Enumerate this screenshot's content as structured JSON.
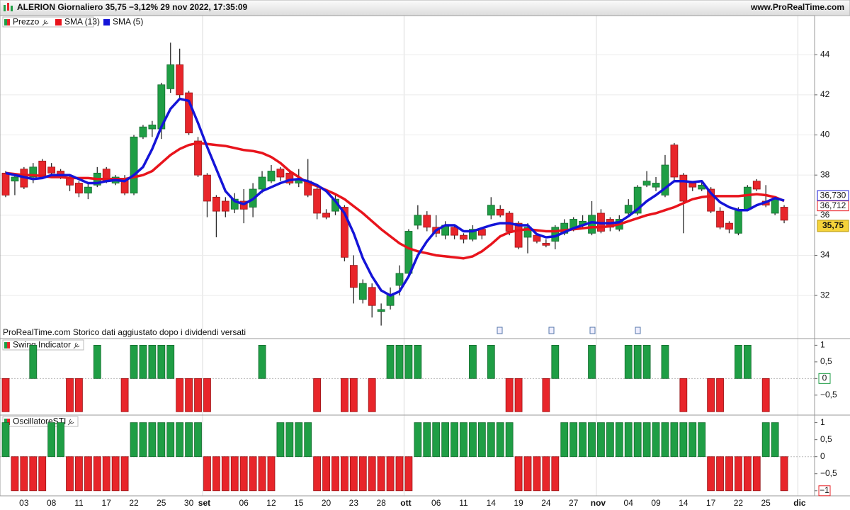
{
  "header": {
    "title": "ALERION Giornaliero 35,75 −3,12% 29 nov 2022, 17:35:09",
    "site": "www.ProRealTime.com"
  },
  "note": "ProRealTime.com Storico dati aggiustato dopo i dividendi versati",
  "chart_data": [
    {
      "type": "candlestick",
      "name": "Prezzo",
      "up_color": "#1f9e45",
      "down_color": "#e8252a",
      "close_label": "35,75",
      "categories": [
        null,
        null,
        "03",
        null,
        null,
        "08",
        null,
        null,
        "11",
        null,
        null,
        "17",
        null,
        null,
        "22",
        null,
        null,
        "25",
        null,
        null,
        "30",
        null,
        "set",
        null,
        null,
        null,
        "06",
        null,
        null,
        "12",
        null,
        null,
        "15",
        null,
        null,
        "20",
        null,
        null,
        "23",
        null,
        null,
        "28",
        null,
        null,
        "ott",
        null,
        null,
        "06",
        null,
        null,
        "11",
        null,
        null,
        "14",
        null,
        null,
        "19",
        null,
        null,
        "24",
        null,
        null,
        "27",
        null,
        null,
        "nov",
        null,
        null,
        "04",
        null,
        null,
        "09",
        null,
        null,
        "14",
        null,
        null,
        "17",
        null,
        null,
        "22",
        null,
        null,
        "25",
        null,
        null,
        null,
        "dic"
      ],
      "open": [
        38.1,
        37.7,
        38.3,
        37.9,
        38.7,
        38.4,
        38.2,
        37.9,
        37.6,
        37.1,
        37.5,
        38.3,
        37.6,
        37.8,
        37.1,
        39.9,
        40.3,
        40.3,
        42.3,
        43.5,
        42.1,
        39.7,
        38.0,
        36.9,
        36.7,
        36.3,
        36.7,
        36.4,
        37.3,
        37.7,
        38.3,
        38.1,
        37.6,
        37.7,
        37.3,
        36.1,
        36.2,
        36.4,
        33.5,
        31.8,
        32.4,
        31.2,
        31.5,
        32.5,
        33.1,
        35.5,
        36.0,
        35.4,
        35.0,
        35.4,
        35.0,
        34.8,
        35.3,
        36.0,
        36.3,
        36.1,
        35.6,
        34.9,
        35.0,
        34.6,
        34.7,
        35.1,
        35.3,
        35.5,
        35.1,
        36.1,
        35.8,
        35.3,
        36.1,
        36.1,
        37.5,
        37.4,
        37.0,
        39.5,
        38.0,
        37.6,
        37.3,
        37.3,
        36.2,
        35.6,
        35.1,
        36.3,
        37.7,
        36.7,
        36.1,
        36.4,
        null,
        null
      ],
      "high": [
        38.2,
        38.0,
        38.4,
        38.6,
        38.8,
        38.6,
        38.3,
        38.0,
        37.7,
        37.6,
        38.4,
        38.4,
        38.0,
        38.0,
        40.0,
        40.5,
        40.7,
        42.6,
        44.6,
        44.3,
        42.2,
        39.9,
        38.1,
        37.0,
        36.9,
        37.1,
        37.3,
        37.6,
        38.2,
        38.5,
        38.4,
        38.2,
        38.3,
        38.8,
        37.4,
        36.3,
        37.0,
        36.5,
        34.0,
        32.8,
        32.6,
        31.6,
        32.4,
        33.5,
        35.3,
        36.5,
        36.2,
        36.0,
        35.7,
        35.5,
        35.1,
        35.5,
        35.4,
        36.9,
        36.5,
        36.2,
        35.7,
        35.6,
        35.1,
        34.8,
        35.5,
        35.8,
        35.9,
        36.0,
        36.7,
        36.3,
        35.9,
        36.0,
        36.8,
        37.5,
        38.2,
        37.9,
        39.0,
        39.6,
        38.1,
        37.7,
        37.7,
        37.4,
        36.4,
        35.7,
        36.4,
        37.5,
        37.8,
        37.5,
        36.9,
        36.5,
        null,
        null
      ],
      "low": [
        36.9,
        37.0,
        37.3,
        37.6,
        37.9,
        37.9,
        37.8,
        37.2,
        36.9,
        36.8,
        37.4,
        37.6,
        37.5,
        37.0,
        37.0,
        39.8,
        39.9,
        39.8,
        42.1,
        41.8,
        40.0,
        37.9,
        35.9,
        34.9,
        35.9,
        36.1,
        35.6,
        35.9,
        37.1,
        37.6,
        37.7,
        37.5,
        37.4,
        36.9,
        35.8,
        35.8,
        36.0,
        33.7,
        31.6,
        31.6,
        30.9,
        30.5,
        31.3,
        32.0,
        33.0,
        35.3,
        35.2,
        34.9,
        34.8,
        34.8,
        34.6,
        34.7,
        34.8,
        35.8,
        35.9,
        35.0,
        34.3,
        34.1,
        34.6,
        34.4,
        34.3,
        35.0,
        35.2,
        35.4,
        35.0,
        35.1,
        35.2,
        35.2,
        36.0,
        36.0,
        37.4,
        37.2,
        36.9,
        37.7,
        35.1,
        37.2,
        37.2,
        36.1,
        35.3,
        35.1,
        35.0,
        36.2,
        37.2,
        36.4,
        36.0,
        35.6,
        null,
        null
      ],
      "close": [
        37.0,
        37.9,
        37.4,
        38.4,
        38.0,
        38.1,
        37.9,
        37.5,
        37.1,
        37.4,
        38.1,
        37.7,
        37.9,
        37.1,
        39.9,
        40.4,
        40.5,
        42.5,
        43.5,
        42.0,
        40.1,
        38.0,
        36.7,
        36.2,
        36.2,
        36.8,
        36.3,
        37.3,
        37.9,
        38.2,
        37.9,
        37.6,
        37.8,
        37.0,
        36.1,
        35.9,
        36.8,
        33.9,
        32.4,
        32.6,
        31.5,
        31.3,
        32.0,
        33.1,
        35.2,
        36.0,
        35.4,
        35.1,
        35.5,
        35.0,
        34.8,
        35.3,
        35.0,
        36.5,
        36.0,
        35.2,
        34.4,
        35.4,
        34.7,
        34.5,
        35.4,
        35.6,
        35.8,
        35.7,
        36.0,
        35.2,
        35.4,
        35.8,
        36.5,
        37.4,
        37.7,
        37.6,
        38.5,
        37.9,
        36.7,
        37.4,
        37.5,
        36.2,
        35.4,
        35.3,
        36.3,
        37.4,
        37.3,
        36.5,
        36.8,
        35.75,
        null,
        null
      ],
      "series": [
        {
          "name": "SMA (13)",
          "color": "#e8141c",
          "last_label": "36,712",
          "values": [
            38.1,
            38.05,
            38.0,
            38.0,
            37.95,
            37.9,
            37.9,
            37.85,
            37.85,
            37.85,
            37.8,
            37.8,
            37.8,
            37.8,
            37.9,
            38.0,
            38.2,
            38.6,
            39.0,
            39.3,
            39.5,
            39.6,
            39.55,
            39.5,
            39.45,
            39.35,
            39.25,
            39.2,
            39.1,
            38.9,
            38.6,
            38.2,
            37.9,
            37.6,
            37.45,
            37.25,
            37.05,
            36.8,
            36.45,
            36.1,
            35.7,
            35.3,
            34.95,
            34.6,
            34.35,
            34.2,
            34.1,
            34.0,
            33.95,
            33.9,
            33.85,
            33.95,
            34.2,
            34.55,
            34.95,
            35.15,
            35.25,
            35.3,
            35.25,
            35.2,
            35.2,
            35.25,
            35.3,
            35.35,
            35.4,
            35.4,
            35.45,
            35.55,
            35.7,
            35.85,
            36.0,
            36.1,
            36.25,
            36.4,
            36.6,
            36.8,
            36.9,
            36.95,
            36.95,
            36.95,
            36.95,
            37.0,
            37.05,
            37.0,
            36.9,
            36.712,
            null,
            null
          ]
        },
        {
          "name": "SMA (5)",
          "color": "#1414d8",
          "last_label": "36,730",
          "values": [
            38.1,
            38.0,
            37.9,
            37.8,
            37.85,
            38.0,
            38.0,
            38.0,
            37.8,
            37.6,
            37.6,
            37.7,
            37.75,
            37.7,
            38.0,
            38.4,
            39.3,
            40.4,
            41.3,
            41.8,
            41.7,
            40.6,
            39.4,
            38.3,
            37.2,
            36.7,
            36.55,
            36.8,
            37.2,
            37.4,
            37.6,
            37.75,
            37.8,
            37.7,
            37.5,
            37.2,
            36.7,
            36.1,
            35.1,
            33.85,
            32.95,
            32.25,
            32.0,
            32.2,
            32.95,
            34.0,
            34.7,
            35.25,
            35.5,
            35.5,
            35.2,
            35.2,
            35.35,
            35.5,
            35.6,
            35.6,
            35.5,
            35.5,
            35.05,
            34.9,
            34.95,
            35.15,
            35.35,
            35.5,
            35.65,
            35.6,
            35.6,
            35.65,
            35.95,
            36.3,
            36.7,
            37.0,
            37.35,
            37.7,
            37.7,
            37.65,
            37.7,
            37.1,
            36.65,
            36.4,
            36.25,
            36.25,
            36.5,
            36.65,
            36.85,
            36.73,
            null,
            null
          ]
        }
      ],
      "ylim": [
        29.85,
        45.95
      ],
      "yticks": [
        32,
        34,
        36,
        38,
        40,
        42,
        44
      ],
      "grid": true
    },
    {
      "type": "bar",
      "title": "Swing Indicator",
      "up_color": "#1f9e45",
      "down_color": "#e8252a",
      "values": [
        -1,
        0,
        0,
        1,
        0,
        0,
        0,
        -1,
        -1,
        0,
        1,
        0,
        0,
        -1,
        1,
        1,
        1,
        1,
        1,
        -1,
        -1,
        -1,
        -1,
        0,
        0,
        0,
        0,
        0,
        1,
        0,
        0,
        0,
        0,
        0,
        -1,
        0,
        0,
        -1,
        -1,
        0,
        -1,
        0,
        1,
        1,
        1,
        1,
        0,
        0,
        0,
        0,
        0,
        1,
        0,
        1,
        0,
        -1,
        -1,
        0,
        0,
        -1,
        1,
        0,
        0,
        0,
        1,
        0,
        0,
        0,
        1,
        1,
        1,
        0,
        1,
        0,
        -1,
        0,
        0,
        -1,
        -1,
        0,
        1,
        1,
        0,
        -1,
        0,
        0,
        null,
        null
      ],
      "ylim": [
        -1.1,
        1.2
      ],
      "yticks": [
        1,
        {
          "value": 0.5,
          "label": "0,5"
        },
        0,
        {
          "value": -0.5,
          "label": "−0,5"
        }
      ]
    },
    {
      "type": "bar",
      "title": "OscillatoreSTI",
      "up_color": "#1f9e45",
      "down_color": "#e8252a",
      "values": [
        1,
        -1,
        -1,
        -1,
        -1,
        1,
        1,
        -1,
        -1,
        -1,
        -1,
        -1,
        -1,
        -1,
        1,
        1,
        1,
        1,
        1,
        1,
        1,
        1,
        -1,
        -1,
        -1,
        -1,
        -1,
        -1,
        -1,
        -1,
        1,
        1,
        1,
        1,
        -1,
        -1,
        -1,
        -1,
        -1,
        -1,
        -1,
        -1,
        -1,
        -1,
        -1,
        1,
        1,
        1,
        1,
        1,
        1,
        1,
        1,
        1,
        1,
        1,
        -1,
        -1,
        -1,
        -1,
        -1,
        1,
        1,
        1,
        1,
        1,
        1,
        1,
        1,
        1,
        1,
        1,
        1,
        1,
        1,
        1,
        1,
        -1,
        -1,
        -1,
        -1,
        -1,
        -1,
        1,
        1,
        -1,
        null,
        null
      ],
      "ylim": [
        -1.15,
        1.2
      ],
      "yticks": [
        1,
        {
          "value": 0.5,
          "label": "0,5"
        },
        0,
        {
          "value": -0.5,
          "label": "−0,5"
        },
        {
          "value": -1,
          "label": "−1"
        }
      ]
    }
  ]
}
